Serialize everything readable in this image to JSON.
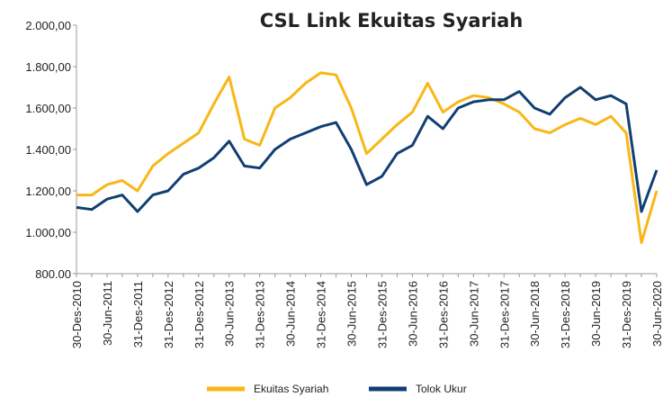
{
  "chart_data": {
    "type": "line",
    "title": "CSL Link Ekuitas Syariah",
    "categories": [
      "30-Des-2010",
      null,
      "30-Jun-2011",
      null,
      "31-Des-2011",
      null,
      "31-Des-2012",
      null,
      "31-Des-2012",
      null,
      "30-Jun-2013",
      null,
      "31-Des-2013",
      null,
      "30-Jun-2014",
      null,
      "31-Des-2014",
      null,
      "30-Jun-2015",
      null,
      "31-Des-2015",
      null,
      "30-Jun-2016",
      null,
      "31-Des-2016",
      null,
      "30-Jun-2017",
      null,
      "31-Des-2017",
      null,
      "30-Jun-2018",
      null,
      "31-Des-2018",
      null,
      "30-Jun-2019",
      null,
      "31-Des-2019",
      null,
      "30-Jun-2020"
    ],
    "series": [
      {
        "name": "Ekuitas Syariah",
        "color": "#f9b716",
        "values": [
          1180,
          1180,
          1230,
          1250,
          1200,
          1320,
          1380,
          1430,
          1480,
          1620,
          1750,
          1450,
          1420,
          1600,
          1650,
          1720,
          1770,
          1760,
          1600,
          1380,
          1450,
          1520,
          1580,
          1720,
          1580,
          1630,
          1660,
          1650,
          1620,
          1580,
          1500,
          1480,
          1520,
          1550,
          1520,
          1560,
          1480,
          950,
          1200
        ]
      },
      {
        "name": "Tolok Ukur",
        "color": "#123f73",
        "values": [
          1120,
          1110,
          1160,
          1180,
          1100,
          1180,
          1200,
          1280,
          1310,
          1360,
          1440,
          1320,
          1310,
          1400,
          1450,
          1480,
          1510,
          1530,
          1400,
          1230,
          1270,
          1380,
          1420,
          1560,
          1500,
          1600,
          1630,
          1640,
          1640,
          1680,
          1600,
          1570,
          1650,
          1700,
          1640,
          1660,
          1620,
          1100,
          1300
        ]
      }
    ],
    "ylim": [
      800,
      2000
    ],
    "yticks": [
      {
        "value": 800,
        "label": "800.00"
      },
      {
        "value": 1000,
        "label": "1.000,00"
      },
      {
        "value": 1200,
        "label": "1.200,00"
      },
      {
        "value": 1400,
        "label": "1.400,00"
      },
      {
        "value": 1600,
        "label": "1.600,00"
      },
      {
        "value": 1800,
        "label": "1.800,00"
      },
      {
        "value": 2000,
        "label": "2.000,00"
      }
    ],
    "grid": false
  }
}
